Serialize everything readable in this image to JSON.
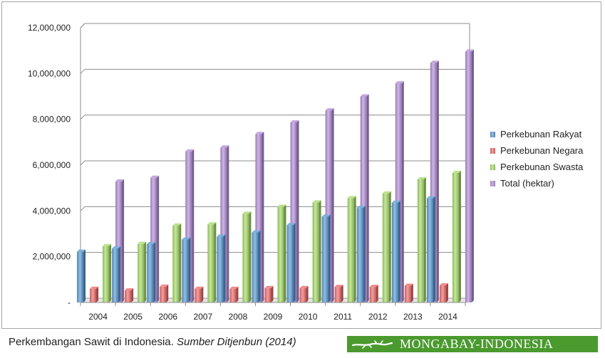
{
  "chart_data": {
    "type": "bar",
    "title": "",
    "xlabel": "",
    "ylabel": "",
    "categories": [
      "2004",
      "2005",
      "2006",
      "2007",
      "2008",
      "2009",
      "2010",
      "2011",
      "2012",
      "2013",
      "2014"
    ],
    "ylim": [
      0,
      12000000
    ],
    "yticks": [
      0,
      2000000,
      4000000,
      6000000,
      8000000,
      10000000,
      12000000
    ],
    "ytick_labels": [
      "-",
      "2,000,000",
      "4,000,000",
      "6,000,000",
      "8,000,000",
      "10,000,000",
      "12,000,000"
    ],
    "grid": true,
    "legend_position": "right",
    "series": [
      {
        "name": "Perkebunan Rakyat",
        "color": "#5b9bd5",
        "values": [
          2220000,
          2360000,
          2550000,
          2750000,
          2880000,
          3060000,
          3380000,
          3750000,
          4130000,
          4360000,
          4550000
        ]
      },
      {
        "name": "Perkebunan Negara",
        "color": "#ef6b6b",
        "values": [
          600000,
          530000,
          690000,
          600000,
          600000,
          630000,
          630000,
          680000,
          680000,
          730000,
          750000
        ]
      },
      {
        "name": "Perkebunan Swasta",
        "color": "#a8dc6a",
        "values": [
          2460000,
          2560000,
          3360000,
          3410000,
          3880000,
          4180000,
          4370000,
          4560000,
          4760000,
          5380000,
          5660000
        ]
      },
      {
        "name": "Total (hektar)",
        "color": "#b48fd8",
        "values": [
          5290000,
          5450000,
          6600000,
          6770000,
          7360000,
          7870000,
          8390000,
          9000000,
          9570000,
          10470000,
          10960000
        ]
      }
    ]
  },
  "caption": {
    "text": "Perkembangan Sawit di Indonesia. ",
    "source": "Sumber Ditjenbun (2014)"
  },
  "brand": {
    "text": "MONGABAY-INDONESIA"
  }
}
